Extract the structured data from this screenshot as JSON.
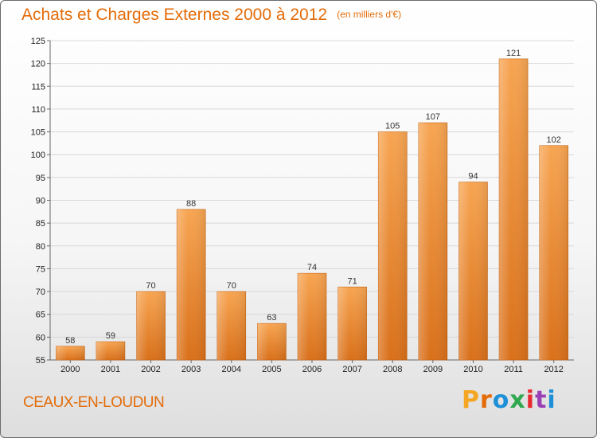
{
  "title": "Achats et Charges Externes 2000 à 2012",
  "unit_label": "(en milliers d'€)",
  "commune": "CEAUX-EN-LOUDUN",
  "logo": {
    "letters": [
      "P",
      "r",
      "o",
      "x",
      "i",
      "t",
      "i"
    ],
    "colors": [
      "#f5a623",
      "#e36c09",
      "#1e90d8",
      "#2fa84f",
      "#e8292f",
      "#9b3fb5",
      "#1e90d8"
    ]
  },
  "colors": {
    "bar_light": "#f7a552",
    "bar_dark": "#d9701a",
    "text_accent": "#e36c09"
  },
  "chart_data": {
    "type": "bar",
    "categories": [
      "2000",
      "2001",
      "2002",
      "2003",
      "2004",
      "2005",
      "2006",
      "2007",
      "2008",
      "2009",
      "2010",
      "2011",
      "2012"
    ],
    "values": [
      58,
      59,
      70,
      88,
      70,
      63,
      74,
      71,
      105,
      107,
      94,
      121,
      102
    ],
    "ylim": [
      55,
      125
    ],
    "yticks": [
      55,
      60,
      65,
      70,
      75,
      80,
      85,
      90,
      95,
      100,
      105,
      110,
      115,
      120,
      125
    ],
    "grid": true
  }
}
